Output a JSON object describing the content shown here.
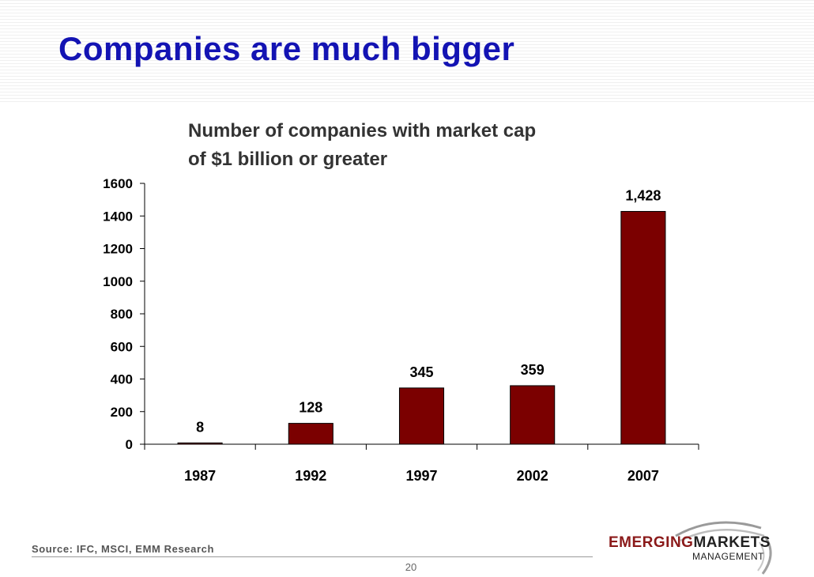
{
  "slide": {
    "title": "Companies are much bigger",
    "source": "Source: IFC, MSCI, EMM Research",
    "page_number": "20"
  },
  "logo": {
    "name_part1": "EMERGING",
    "name_part2": "MARKETS",
    "subtitle": "MANAGEMENT"
  },
  "chart_data": {
    "type": "bar",
    "title_lines": [
      "Number of companies with market cap",
      "of $1 billion or greater"
    ],
    "categories": [
      "1987",
      "1992",
      "1997",
      "2002",
      "2007"
    ],
    "values": [
      8,
      128,
      345,
      359,
      1428
    ],
    "data_labels": [
      "8",
      "128",
      "345",
      "359",
      "1,428"
    ],
    "ylim": [
      0,
      1600
    ],
    "yticks": [
      0,
      200,
      400,
      600,
      800,
      1000,
      1200,
      1400,
      1600
    ],
    "xlabel": "",
    "ylabel": "",
    "grid": false,
    "legend": "none",
    "bar_color": "#7b0000"
  }
}
